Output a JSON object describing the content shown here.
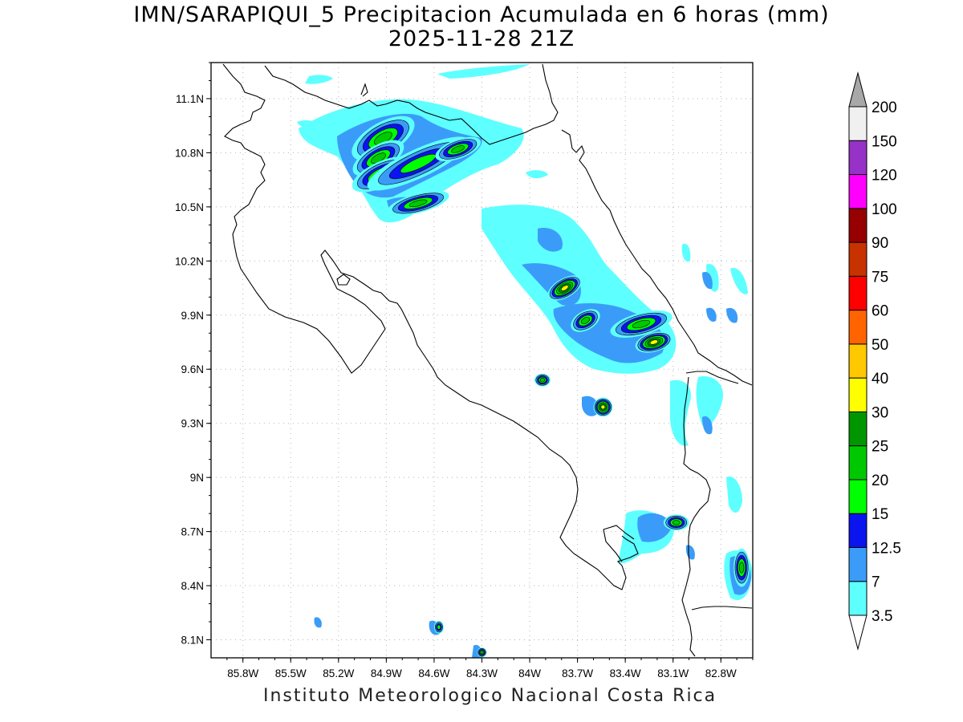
{
  "title_line1": "IMN/SARAPIQUI_5 Precipitacion Acumulada en 6 horas (mm)",
  "title_line2": "2025-11-28 21Z",
  "footer": "Instituto Meteorologico Nacional Costa Rica",
  "map": {
    "lon_range": [
      -86.0,
      -82.6
    ],
    "lat_range": [
      8.0,
      11.3
    ],
    "x_ticks": [
      {
        "lon": -85.8,
        "label": "85.8W"
      },
      {
        "lon": -85.5,
        "label": "85.5W"
      },
      {
        "lon": -85.2,
        "label": "85.2W"
      },
      {
        "lon": -84.9,
        "label": "84.9W"
      },
      {
        "lon": -84.6,
        "label": "84.6W"
      },
      {
        "lon": -84.3,
        "label": "84.3W"
      },
      {
        "lon": -84.0,
        "label": "84W"
      },
      {
        "lon": -83.7,
        "label": "83.7W"
      },
      {
        "lon": -83.4,
        "label": "83.4W"
      },
      {
        "lon": -83.1,
        "label": "83.1W"
      },
      {
        "lon": -82.8,
        "label": "82.8W"
      }
    ],
    "y_ticks": [
      {
        "lat": 11.1,
        "label": "11.1N"
      },
      {
        "lat": 10.8,
        "label": "10.8N"
      },
      {
        "lat": 10.5,
        "label": "10.5N"
      },
      {
        "lat": 10.2,
        "label": "10.2N"
      },
      {
        "lat": 9.9,
        "label": "9.9N"
      },
      {
        "lat": 9.6,
        "label": "9.6N"
      },
      {
        "lat": 9.3,
        "label": "9.3N"
      },
      {
        "lat": 9.0,
        "label": "9N"
      },
      {
        "lat": 8.7,
        "label": "8.7N"
      },
      {
        "lat": 8.4,
        "label": "8.4N"
      },
      {
        "lat": 8.1,
        "label": "8.1N"
      }
    ],
    "grid": true
  },
  "colorbar": {
    "levels": [
      {
        "label": "3.5",
        "color": "#5effff"
      },
      {
        "label": "7",
        "color": "#3a9cf8"
      },
      {
        "label": "12.5",
        "color": "#0a14ee"
      },
      {
        "label": "15",
        "color": "#00ff00"
      },
      {
        "label": "20",
        "color": "#00c800"
      },
      {
        "label": "25",
        "color": "#009600"
      },
      {
        "label": "30",
        "color": "#ffff00"
      },
      {
        "label": "40",
        "color": "#ffc800"
      },
      {
        "label": "50",
        "color": "#ff6400"
      },
      {
        "label": "60",
        "color": "#ff0000"
      },
      {
        "label": "75",
        "color": "#c83200"
      },
      {
        "label": "90",
        "color": "#960000"
      },
      {
        "label": "100",
        "color": "#ff00ff"
      },
      {
        "label": "120",
        "color": "#9632c8"
      },
      {
        "label": "150",
        "color": "#f0f0f0"
      },
      {
        "label": "200",
        "color": "#a8a8a8"
      }
    ]
  },
  "precip_cells": [
    {
      "lon": -84.92,
      "lat": 10.88,
      "rx": 0.22,
      "ry": 0.1,
      "rot": -30,
      "level": 4
    },
    {
      "lon": -84.95,
      "lat": 10.77,
      "rx": 0.18,
      "ry": 0.08,
      "rot": -30,
      "level": 4
    },
    {
      "lon": -84.93,
      "lat": 10.68,
      "rx": 0.2,
      "ry": 0.08,
      "rot": -25,
      "level": 4
    },
    {
      "lon": -84.7,
      "lat": 10.74,
      "rx": 0.35,
      "ry": 0.09,
      "rot": -25,
      "level": 3
    },
    {
      "lon": -84.45,
      "lat": 10.82,
      "rx": 0.15,
      "ry": 0.06,
      "rot": -20,
      "level": 4
    },
    {
      "lon": -84.7,
      "lat": 10.52,
      "rx": 0.2,
      "ry": 0.06,
      "rot": -15,
      "level": 4
    },
    {
      "lon": -83.78,
      "lat": 10.05,
      "rx": 0.12,
      "ry": 0.06,
      "rot": -30,
      "level": 6
    },
    {
      "lon": -83.65,
      "lat": 9.87,
      "rx": 0.1,
      "ry": 0.06,
      "rot": -30,
      "level": 4
    },
    {
      "lon": -83.3,
      "lat": 9.85,
      "rx": 0.2,
      "ry": 0.07,
      "rot": -15,
      "level": 4
    },
    {
      "lon": -83.22,
      "lat": 9.75,
      "rx": 0.12,
      "ry": 0.06,
      "rot": -15,
      "level": 6
    },
    {
      "lon": -83.54,
      "lat": 9.39,
      "rx": 0.06,
      "ry": 0.06,
      "rot": 0,
      "level": 6
    },
    {
      "lon": -83.92,
      "lat": 9.54,
      "rx": 0.05,
      "ry": 0.04,
      "rot": 0,
      "level": 4
    },
    {
      "lon": -83.08,
      "lat": 8.75,
      "rx": 0.08,
      "ry": 0.05,
      "rot": 0,
      "level": 4
    },
    {
      "lon": -82.67,
      "lat": 8.5,
      "rx": 0.05,
      "ry": 0.12,
      "rot": 0,
      "level": 4
    },
    {
      "lon": -84.57,
      "lat": 8.17,
      "rx": 0.03,
      "ry": 0.04,
      "rot": 0,
      "level": 3
    },
    {
      "lon": -84.3,
      "lat": 8.03,
      "rx": 0.03,
      "ry": 0.03,
      "rot": 0,
      "level": 4
    }
  ]
}
